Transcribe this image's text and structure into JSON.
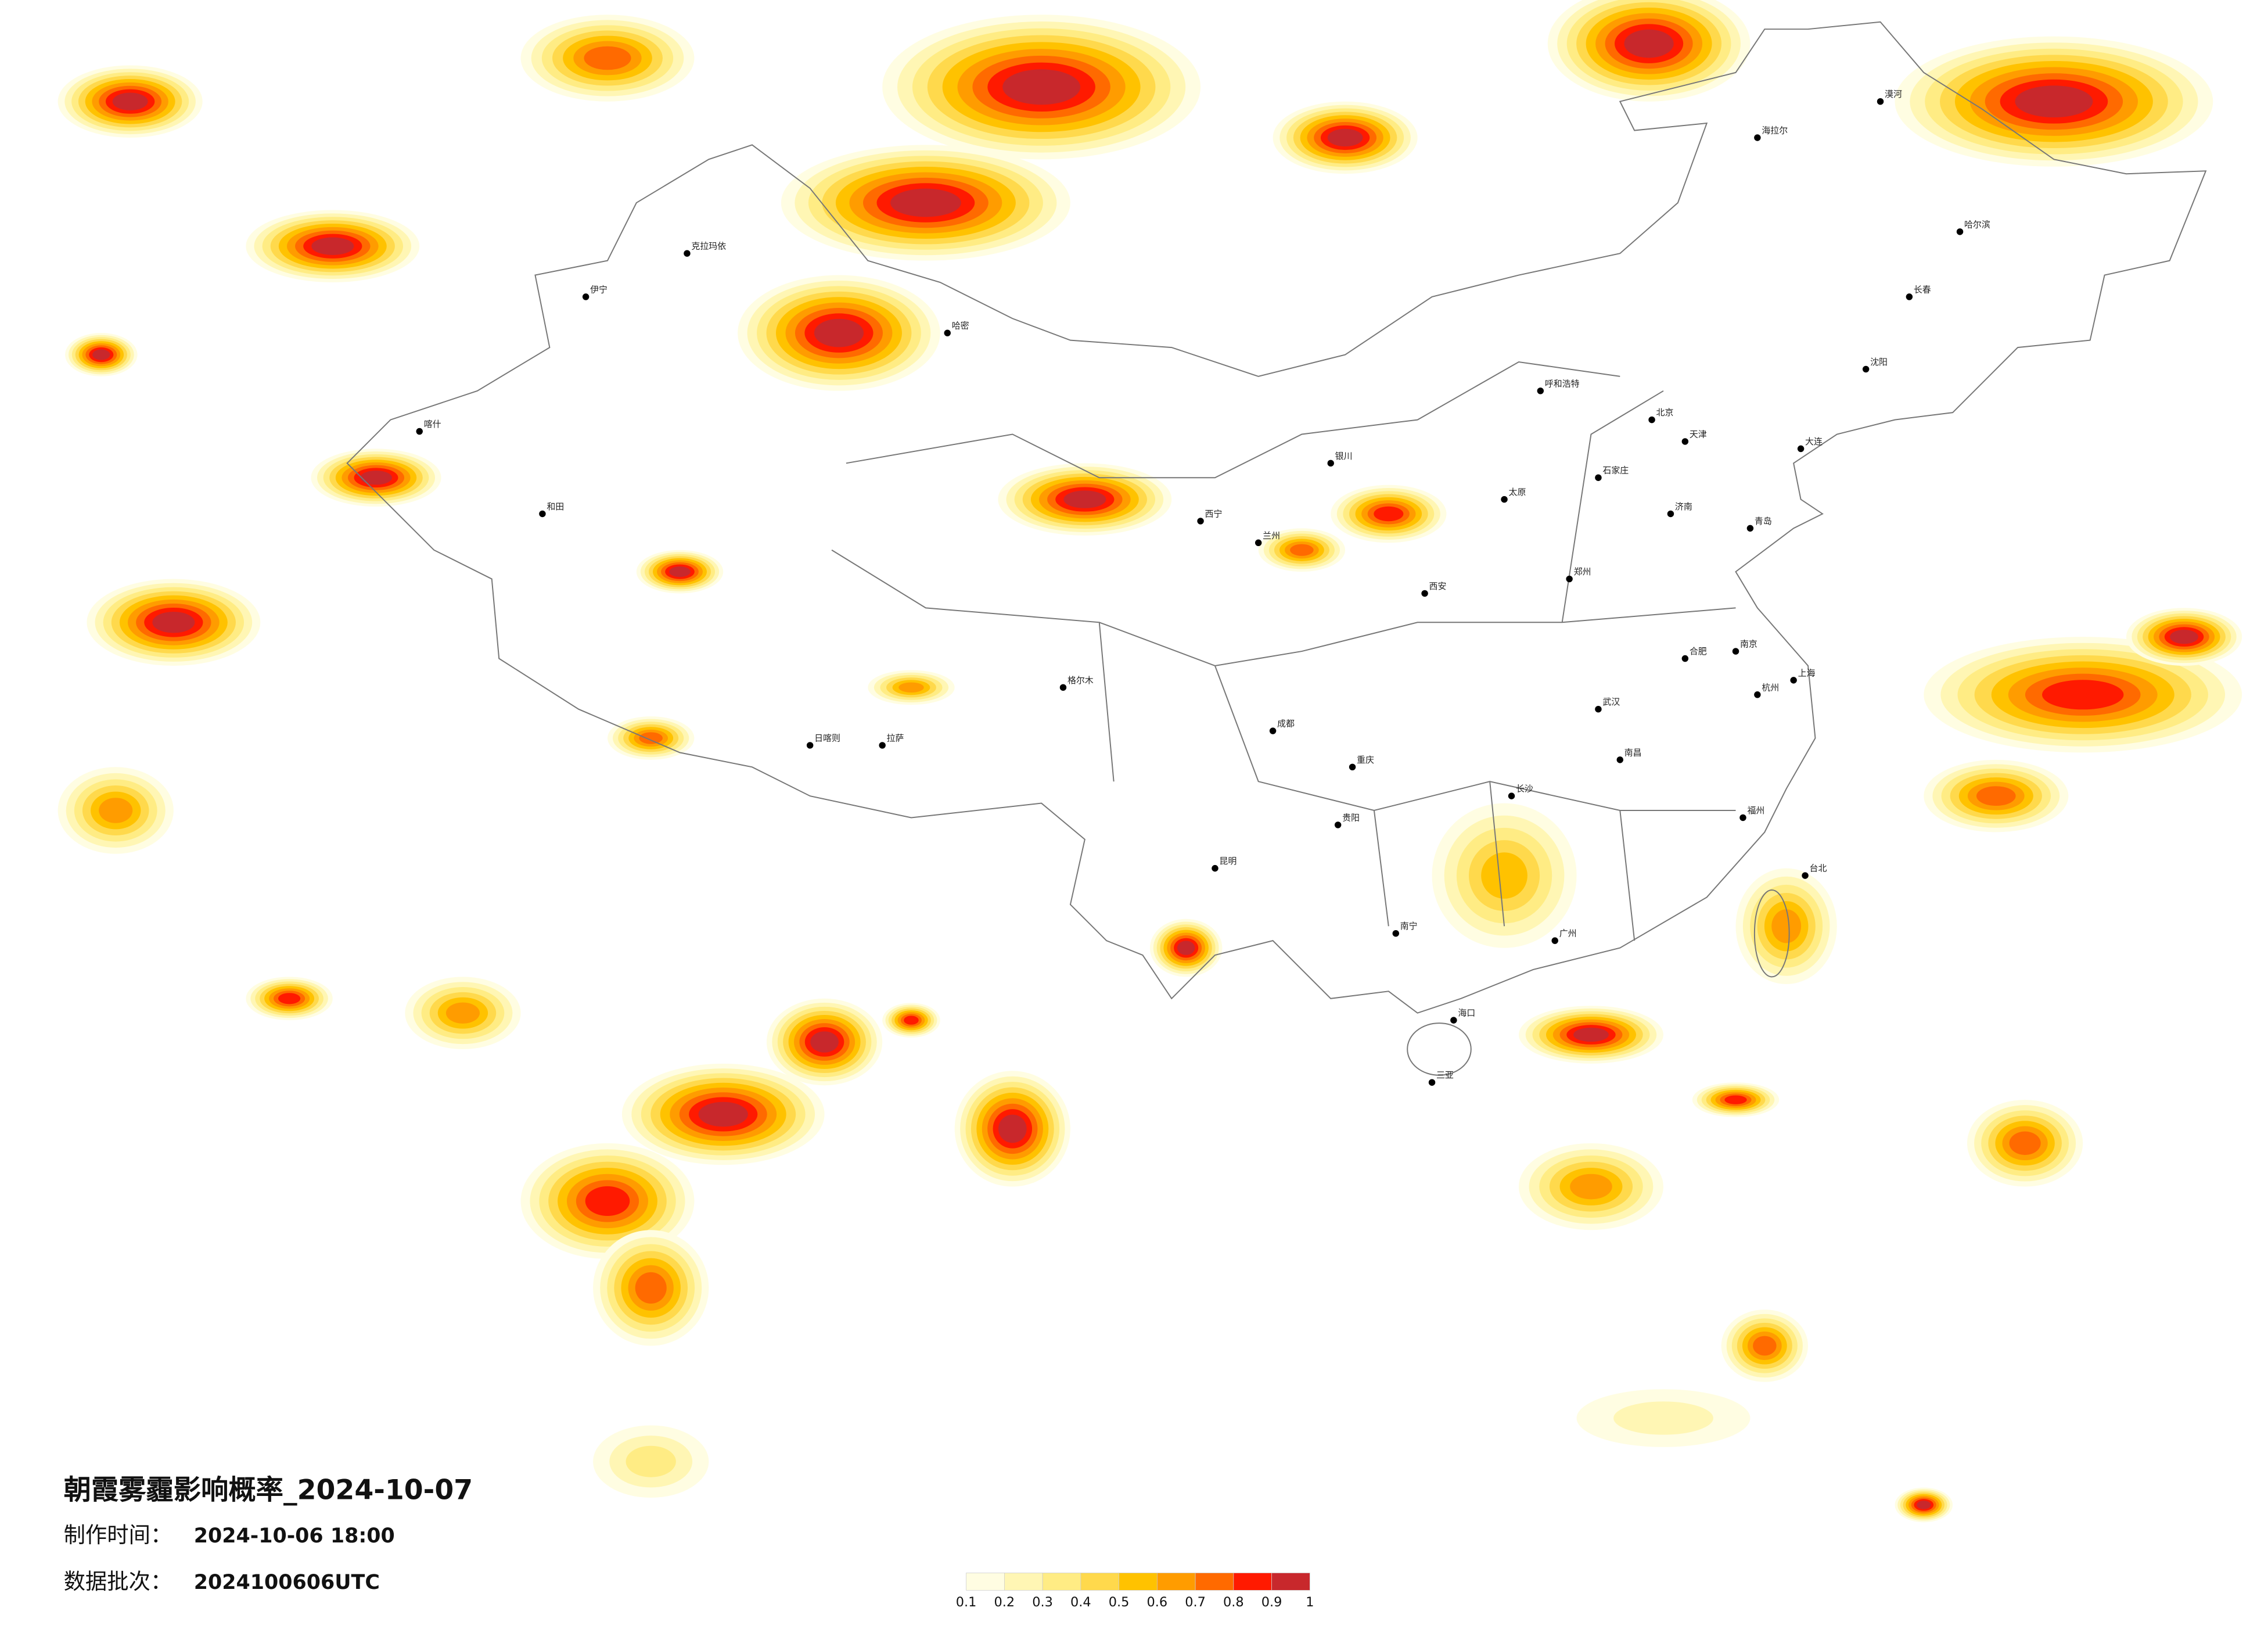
{
  "title": "朝霞雾霾影响概率_2024-10-07",
  "made_label": "制作时间：",
  "made_value": "2024-10-06 18:00",
  "batch_label": "数据批次：",
  "batch_value": "2024100606UTC",
  "legend": {
    "ticks": [
      0.1,
      0.2,
      0.3,
      0.4,
      0.5,
      0.6,
      0.7,
      0.8,
      0.9,
      1
    ],
    "colors": [
      "#fffde2",
      "#fff6b4",
      "#ffec84",
      "#ffd94c",
      "#ffc200",
      "#ff9c00",
      "#ff6a00",
      "#ff1a00",
      "#c8282c"
    ]
  },
  "cities": [
    "北京",
    "天津",
    "上海",
    "广州",
    "武汉",
    "成都",
    "重庆",
    "西安",
    "郑州",
    "长沙",
    "南京",
    "杭州",
    "哈尔滨",
    "长春",
    "沈阳",
    "拉萨",
    "昆明",
    "贵阳",
    "南宁",
    "海口",
    "兰州",
    "西宁",
    "银川",
    "呼和浩特",
    "太原",
    "石家庄",
    "济南",
    "合肥",
    "南昌",
    "福州",
    "台北",
    "喀什",
    "和田",
    "伊宁",
    "克拉玛依",
    "哈密",
    "格尔木",
    "日喀则",
    "海拉尔",
    "漠河",
    "三亚",
    "大连",
    "青岛"
  ]
}
